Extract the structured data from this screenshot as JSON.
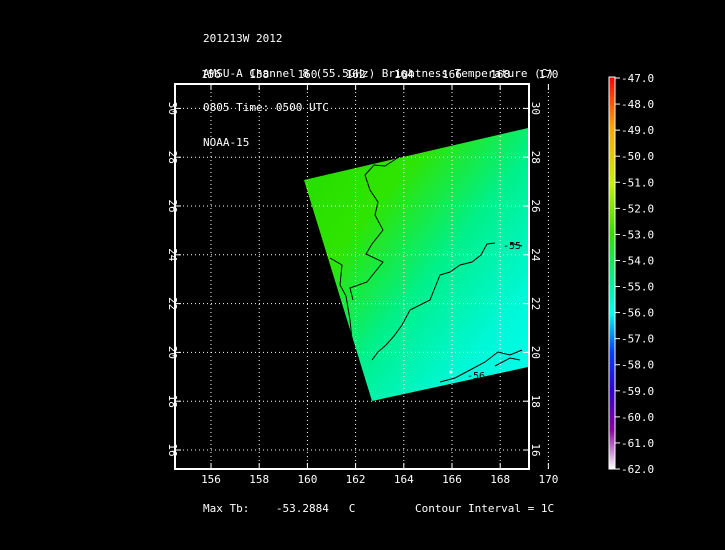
{
  "header": {
    "line1": "201213W 2012",
    "line2": "AMSU-A Channel 8 (55.5GHz) Brightness Temperature (C)",
    "line3": "0805 Time: 0500 UTC",
    "line4": "NOAA-15"
  },
  "map": {
    "lon_ticks": [
      "156",
      "158",
      "160",
      "162",
      "164",
      "166",
      "168",
      "170"
    ],
    "lat_ticks": [
      "16",
      "18",
      "20",
      "22",
      "24",
      "26",
      "28",
      "30"
    ],
    "contour_labels": [
      "-55",
      "-56"
    ],
    "colors": {
      "background": "#000000",
      "frame": "#ffffff",
      "grid": "#ffffff",
      "contour": "#000000"
    }
  },
  "colorbar": {
    "labels": [
      "-47.0",
      "-48.0",
      "-49.0",
      "-50.0",
      "-51.0",
      "-52.0",
      "-53.0",
      "-54.0",
      "-55.0",
      "-56.0",
      "-57.0",
      "-58.0",
      "-59.0",
      "-60.0",
      "-61.0",
      "-62.0"
    ],
    "colors": [
      "#ff0000",
      "#ff5a00",
      "#ffa500",
      "#ffe000",
      "#c8f000",
      "#7be000",
      "#33dd00",
      "#00e050",
      "#00f0a0",
      "#00ffee",
      "#00b0ff",
      "#0040ff",
      "#3000d0",
      "#6a00b0",
      "#8a00a0",
      "#ffffff"
    ]
  },
  "footer": {
    "max_tb_label": "Max Tb:",
    "max_tb_value": "-53.2884",
    "max_tb_unit": "C",
    "contour_interval": "Contour Interval = 1C"
  }
}
